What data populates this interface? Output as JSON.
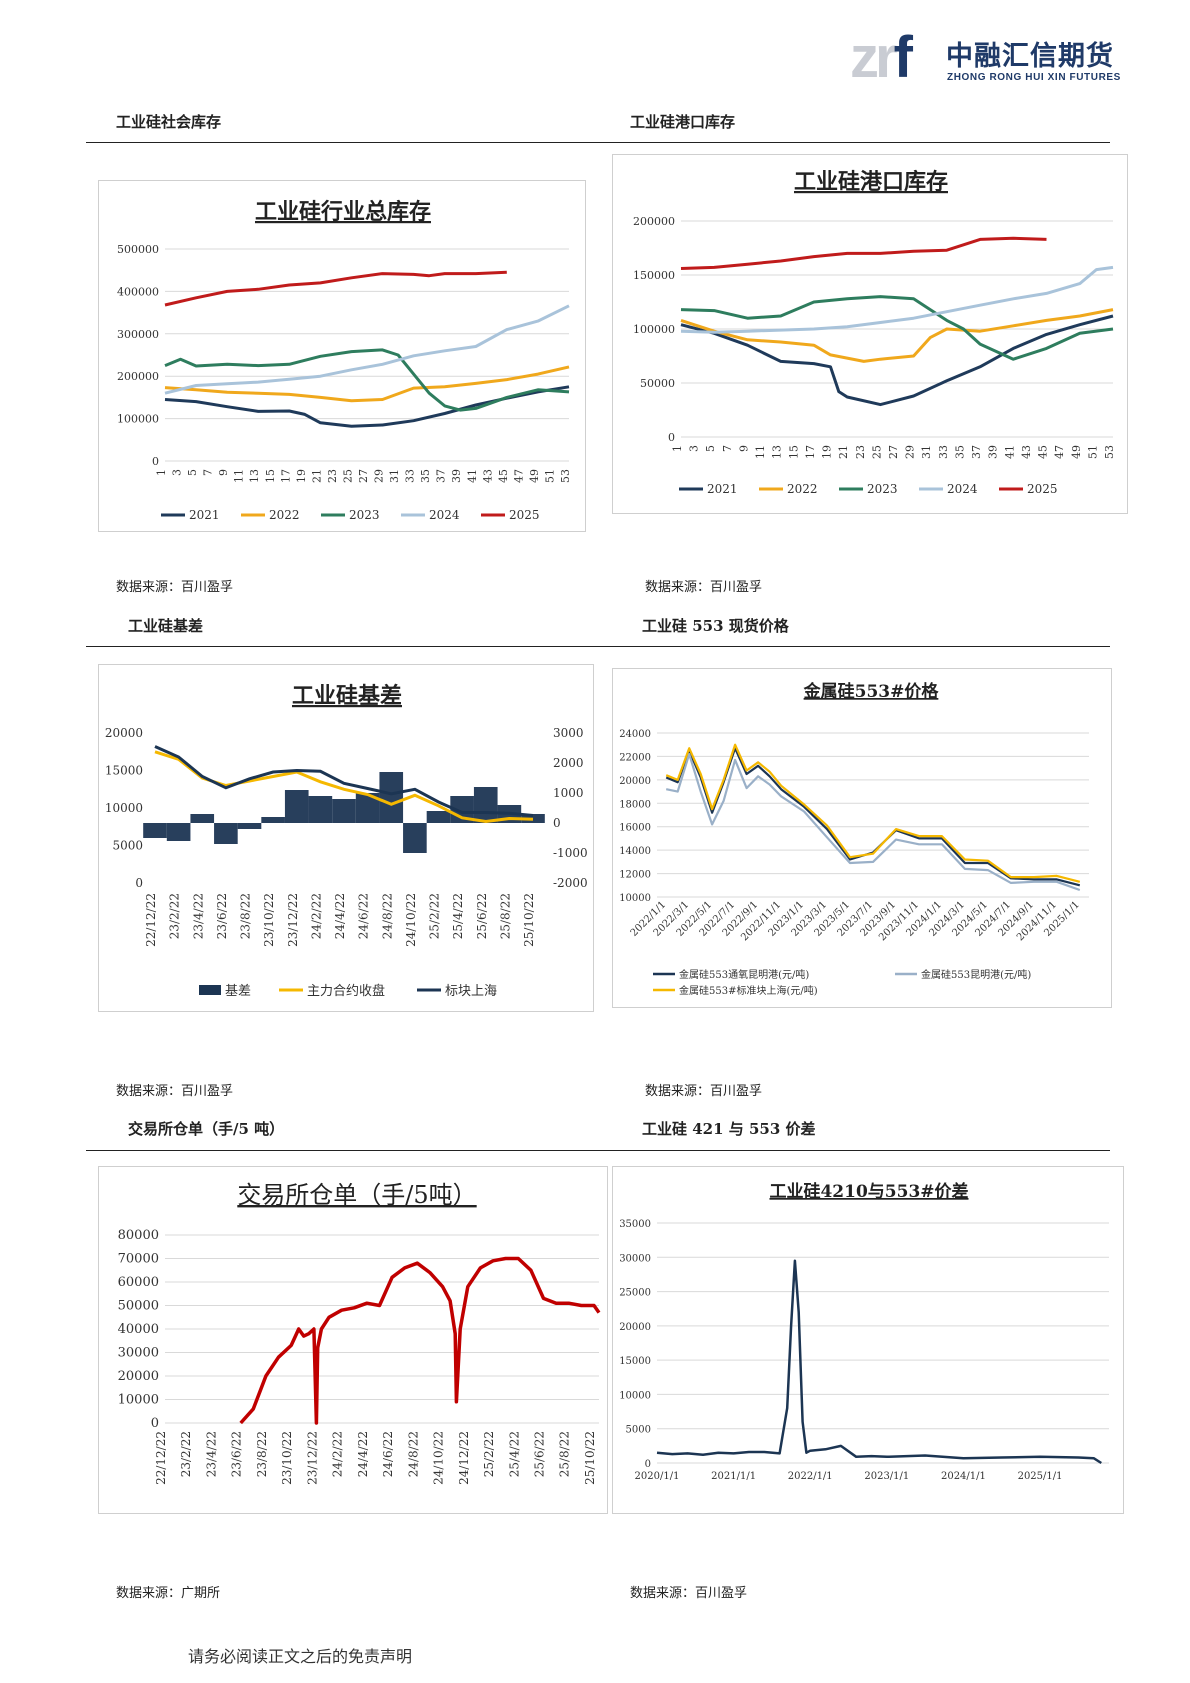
{
  "logo": {
    "mark_z": "zr",
    "mark_f": "f",
    "cn": "中融汇信期货",
    "en": "ZHONG RONG HUI XIN FUTURES"
  },
  "sections": {
    "s1": "工业硅社会库存",
    "s2": "工业硅港口库存",
    "s3": "工业硅基差",
    "s4": "工业硅 553 现货价格",
    "s5": "交易所仓单（手/5 吨）",
    "s6": "工业硅 421 与 553 价差"
  },
  "sources": {
    "src1": "数据来源：百川盈孚",
    "src2": "数据来源：百川盈孚",
    "src3": "数据来源：百川盈孚",
    "src4": "数据来源：百川盈孚",
    "src5": "数据来源：广期所",
    "src6": "数据来源：百川盈孚"
  },
  "footer": "请务必阅读正文之后的免责声明",
  "colors": {
    "y2021": "#1f3a5a",
    "y2022": "#f0a81c",
    "y2023": "#2e7d5e",
    "y2024": "#a9c3da",
    "y2025": "#c01b1b",
    "navy": "#1c3553",
    "gold": "#f5b800",
    "red": "#c00000",
    "grey": "#9ab0c8"
  },
  "chart_data": [
    {
      "type": "line",
      "title": "工业硅行业总库存",
      "ylim": [
        0,
        500000
      ],
      "yticks": [
        "500000",
        "400000",
        "300000",
        "200000",
        "100000",
        "0"
      ],
      "xticks": [
        "1",
        "3",
        "5",
        "7",
        "9",
        "11",
        "13",
        "15",
        "17",
        "19",
        "21",
        "23",
        "25",
        "27",
        "29",
        "31",
        "33",
        "35",
        "37",
        "39",
        "41",
        "43",
        "45",
        "47",
        "49",
        "51",
        "53"
      ],
      "series": [
        {
          "name": "2021",
          "x": [
            1,
            5,
            9,
            13,
            17,
            19,
            21,
            25,
            29,
            33,
            37,
            41,
            45,
            49,
            53
          ],
          "values": [
            145000,
            140000,
            128000,
            117000,
            118000,
            110000,
            90000,
            82000,
            85000,
            95000,
            112000,
            132000,
            148000,
            163000,
            175000
          ]
        },
        {
          "name": "2022",
          "x": [
            1,
            5,
            9,
            13,
            17,
            21,
            25,
            29,
            33,
            37,
            41,
            45,
            49,
            53
          ],
          "values": [
            173000,
            168000,
            162000,
            160000,
            157000,
            150000,
            142000,
            145000,
            172000,
            175000,
            183000,
            192000,
            205000,
            222000
          ]
        },
        {
          "name": "2023",
          "x": [
            1,
            3,
            5,
            9,
            13,
            17,
            21,
            25,
            29,
            31,
            33,
            35,
            37,
            39,
            41,
            45,
            49,
            53
          ],
          "values": [
            225000,
            240000,
            224000,
            228000,
            225000,
            228000,
            247000,
            258000,
            262000,
            250000,
            205000,
            160000,
            130000,
            120000,
            124000,
            150000,
            168000,
            163000
          ]
        },
        {
          "name": "2024",
          "x": [
            1,
            5,
            9,
            13,
            17,
            21,
            25,
            29,
            33,
            37,
            41,
            45,
            49,
            53
          ],
          "values": [
            160000,
            178000,
            182000,
            186000,
            193000,
            200000,
            215000,
            228000,
            248000,
            260000,
            270000,
            310000,
            330000,
            366000
          ]
        },
        {
          "name": "2025",
          "x": [
            1,
            5,
            9,
            13,
            17,
            21,
            25,
            29,
            33,
            35,
            37,
            41,
            45
          ],
          "values": [
            368000,
            385000,
            400000,
            405000,
            415000,
            420000,
            432000,
            442000,
            440000,
            437000,
            442000,
            442000,
            445000
          ]
        }
      ]
    },
    {
      "type": "line",
      "title": "工业硅港口库存",
      "ylim": [
        0,
        200000
      ],
      "yticks": [
        "200000",
        "150000",
        "100000",
        "50000",
        "0"
      ],
      "xticks": [
        "1",
        "3",
        "5",
        "7",
        "9",
        "11",
        "13",
        "15",
        "17",
        "19",
        "21",
        "23",
        "25",
        "27",
        "29",
        "31",
        "33",
        "35",
        "37",
        "39",
        "41",
        "43",
        "45",
        "47",
        "49",
        "51",
        "53"
      ],
      "series": [
        {
          "name": "2021",
          "x": [
            1,
            5,
            9,
            13,
            17,
            19,
            20,
            21,
            25,
            29,
            33,
            37,
            41,
            45,
            49,
            53
          ],
          "values": [
            104000,
            96000,
            85000,
            70000,
            68000,
            65000,
            42000,
            37000,
            30000,
            38000,
            52000,
            65000,
            82000,
            95000,
            104000,
            112000
          ]
        },
        {
          "name": "2022",
          "x": [
            1,
            5,
            9,
            13,
            17,
            19,
            23,
            25,
            29,
            31,
            33,
            37,
            41,
            45,
            49,
            53
          ],
          "values": [
            108000,
            98000,
            90000,
            88000,
            85000,
            76000,
            70000,
            72000,
            75000,
            92000,
            100000,
            98000,
            103000,
            108000,
            112000,
            118000
          ]
        },
        {
          "name": "2023",
          "x": [
            1,
            5,
            9,
            13,
            17,
            21,
            25,
            29,
            31,
            33,
            35,
            37,
            41,
            45,
            49,
            53
          ],
          "values": [
            118000,
            117000,
            110000,
            112000,
            125000,
            128000,
            130000,
            128000,
            118000,
            108000,
            100000,
            86000,
            72000,
            82000,
            96000,
            100000
          ]
        },
        {
          "name": "2024",
          "x": [
            1,
            5,
            9,
            13,
            17,
            21,
            25,
            29,
            33,
            37,
            41,
            45,
            49,
            51,
            53
          ],
          "values": [
            98000,
            97000,
            98000,
            99000,
            100000,
            102000,
            106000,
            110000,
            116000,
            122000,
            128000,
            133000,
            142000,
            155000,
            157000
          ]
        },
        {
          "name": "2025",
          "x": [
            1,
            5,
            9,
            13,
            17,
            21,
            25,
            29,
            33,
            35,
            37,
            41,
            45
          ],
          "values": [
            156000,
            157000,
            160000,
            163000,
            167000,
            170000,
            170000,
            172000,
            173000,
            178000,
            183000,
            184000,
            183000
          ]
        }
      ]
    },
    {
      "type": "bar+line",
      "title": "工业硅基差",
      "ylim": [
        0,
        20000
      ],
      "ylim_right": [
        -2000,
        3000
      ],
      "yticks": [
        "20000",
        "15000",
        "10000",
        "5000",
        "0"
      ],
      "yticks_right": [
        "3000",
        "2000",
        "1000",
        "0",
        "-1000",
        "-2000"
      ],
      "xticks": [
        "22/12/22",
        "23/2/22",
        "23/4/22",
        "23/6/22",
        "23/8/22",
        "23/10/22",
        "23/12/22",
        "24/2/22",
        "24/4/22",
        "24/6/22",
        "24/8/22",
        "24/10/22",
        "25/2/22",
        "25/4/22",
        "25/6/22",
        "25/8/22",
        "25/10/22"
      ],
      "series": [
        {
          "name": "基差",
          "axis": "right",
          "type": "bar",
          "x": [
            0,
            1,
            2,
            3,
            4,
            5,
            6,
            7,
            8,
            9,
            10,
            11,
            12,
            13,
            14,
            15,
            16
          ],
          "values": [
            -500,
            -600,
            300,
            -700,
            -200,
            200,
            1100,
            900,
            800,
            1000,
            1700,
            -1000,
            400,
            900,
            1200,
            600,
            300
          ]
        },
        {
          "name": "主力合约收盘",
          "axis": "left",
          "type": "line",
          "x": [
            0,
            1,
            2,
            3,
            4,
            5,
            6,
            7,
            8,
            9,
            10,
            11,
            12,
            13,
            14,
            15,
            16
          ],
          "values": [
            17500,
            16500,
            14000,
            13000,
            13600,
            14200,
            14800,
            13500,
            12500,
            11800,
            10500,
            11700,
            10300,
            8700,
            8200,
            8600,
            8500
          ]
        },
        {
          "name": "标块上海",
          "axis": "left",
          "type": "line",
          "x": [
            0,
            1,
            2,
            3,
            4,
            5,
            6,
            7,
            8,
            9,
            10,
            11,
            12,
            13,
            14,
            15,
            16
          ],
          "values": [
            18200,
            16800,
            14200,
            12700,
            13900,
            14800,
            15000,
            14900,
            13300,
            12600,
            11900,
            12500,
            10800,
            9400,
            9400,
            9300,
            9000
          ]
        }
      ]
    },
    {
      "type": "line",
      "title": "金属硅553#价格",
      "ylim": [
        10000,
        24000
      ],
      "yticks": [
        "24000",
        "22000",
        "20000",
        "18000",
        "16000",
        "14000",
        "12000",
        "10000"
      ],
      "xticks": [
        "2022/1/1",
        "2022/3/1",
        "2022/5/1",
        "2022/7/1",
        "2022/9/1",
        "2022/11/1",
        "2023/1/1",
        "2023/3/1",
        "2023/5/1",
        "2023/7/1",
        "2023/9/1",
        "2023/11/1",
        "2024/1/1",
        "2024/3/1",
        "2024/5/1",
        "2024/7/1",
        "2024/9/1",
        "2024/11/1",
        "2025/1/1"
      ],
      "series": [
        {
          "name": "金属硅553通氧昆明港(元/吨)",
          "x": [
            0,
            0.5,
            1,
            1.5,
            2,
            2.5,
            3,
            3.5,
            4,
            4.5,
            5,
            6,
            7,
            8,
            9,
            10,
            11,
            12,
            13,
            14,
            15,
            16,
            17,
            18
          ],
          "values": [
            20200,
            19800,
            22500,
            20200,
            17200,
            19800,
            22700,
            20500,
            21200,
            20300,
            19200,
            17700,
            15800,
            13200,
            13800,
            15700,
            15000,
            15000,
            12900,
            12900,
            11600,
            11500,
            11500,
            11000
          ]
        },
        {
          "name": "金属硅553昆明港(元/吨)",
          "x": [
            0,
            0.5,
            1,
            1.5,
            2,
            2.5,
            3,
            3.5,
            4,
            4.5,
            5,
            6,
            7,
            8,
            9,
            10,
            11,
            12,
            13,
            14,
            15,
            16,
            17,
            18
          ],
          "values": [
            19200,
            19000,
            22200,
            19000,
            16200,
            18200,
            21700,
            19300,
            20300,
            19600,
            18600,
            17300,
            15100,
            12900,
            13000,
            14900,
            14500,
            14500,
            12400,
            12300,
            11200,
            11300,
            11300,
            10600
          ]
        },
        {
          "name": "金属硅553#标准块上海(元/吨)",
          "x": [
            0,
            0.5,
            1,
            1.5,
            2,
            2.5,
            3,
            3.5,
            4,
            4.5,
            5,
            6,
            7,
            8,
            9,
            10,
            11,
            12,
            13,
            14,
            15,
            16,
            17,
            18
          ],
          "values": [
            20400,
            20000,
            22700,
            20500,
            17500,
            20000,
            23000,
            20800,
            21500,
            20700,
            19500,
            17900,
            16100,
            13400,
            13700,
            15800,
            15200,
            15200,
            13200,
            13100,
            11700,
            11700,
            11800,
            11300
          ]
        }
      ]
    },
    {
      "type": "line",
      "title": "交易所仓单（手/5吨）",
      "ylim": [
        0,
        80000
      ],
      "yticks": [
        "80000",
        "70000",
        "60000",
        "50000",
        "40000",
        "30000",
        "20000",
        "10000",
        "0"
      ],
      "xticks": [
        "22/12/22",
        "23/2/22",
        "23/4/22",
        "23/6/22",
        "23/8/22",
        "23/10/22",
        "23/12/22",
        "24/2/22",
        "24/4/22",
        "24/6/22",
        "24/8/22",
        "24/10/22",
        "24/12/22",
        "25/2/22",
        "25/4/22",
        "25/6/22",
        "25/8/22",
        "25/10/22"
      ],
      "series": [
        {
          "name": "仓单",
          "x": [
            3,
            3.5,
            4,
            4.5,
            5,
            5.3,
            5.5,
            5.7,
            5.9,
            6,
            6.05,
            6.2,
            6.5,
            7,
            7.5,
            8,
            8.5,
            9,
            9.5,
            10,
            10.5,
            11,
            11.3,
            11.5,
            11.55,
            11.7,
            12,
            12.5,
            13,
            13.5,
            14,
            14.5,
            15,
            15.5,
            16,
            16.5,
            17,
            17.2
          ],
          "values": [
            0,
            6000,
            20000,
            28000,
            33000,
            40000,
            37000,
            38000,
            40000,
            0,
            32000,
            40000,
            45000,
            48000,
            49000,
            51000,
            50000,
            62000,
            66000,
            68000,
            64000,
            58000,
            52000,
            38000,
            9000,
            40000,
            58000,
            66000,
            69000,
            70000,
            70000,
            65000,
            53000,
            51000,
            51000,
            50000,
            50000,
            47000
          ]
        }
      ]
    },
    {
      "type": "line",
      "title": "工业硅4210与553#价差",
      "ylim": [
        0,
        35000
      ],
      "yticks": [
        "35000",
        "30000",
        "25000",
        "20000",
        "15000",
        "10000",
        "5000",
        "0"
      ],
      "xticks": [
        "2020/1/1",
        "2021/1/1",
        "2022/1/1",
        "2023/1/1",
        "2024/1/1",
        "2025/1/1"
      ],
      "series": [
        {
          "name": "价差",
          "x": [
            0,
            0.2,
            0.4,
            0.6,
            0.8,
            1,
            1.2,
            1.4,
            1.6,
            1.7,
            1.75,
            1.8,
            1.85,
            1.9,
            1.95,
            2,
            2.2,
            2.4,
            2.6,
            2.8,
            3,
            3.5,
            4,
            4.5,
            5,
            5.5,
            5.7,
            5.8
          ],
          "values": [
            1500,
            1300,
            1400,
            1200,
            1500,
            1400,
            1600,
            1600,
            1400,
            8000,
            20000,
            29500,
            22000,
            6000,
            1500,
            1800,
            2000,
            2500,
            900,
            1000,
            900,
            1100,
            700,
            800,
            900,
            800,
            700,
            0
          ]
        }
      ]
    }
  ]
}
